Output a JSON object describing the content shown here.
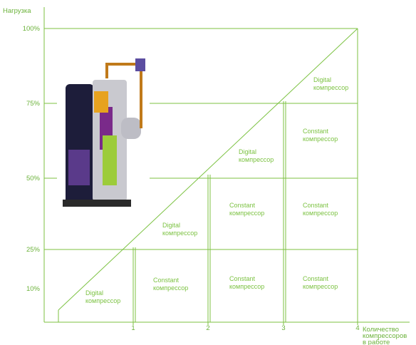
{
  "y_axis": {
    "title": "Нагрузка",
    "ticks": [
      "100%",
      "75%",
      "50%",
      "25%",
      "10%"
    ]
  },
  "x_axis": {
    "title": [
      "Количество",
      "компрессоров",
      "в работе"
    ],
    "ticks": [
      "1",
      "2",
      "3",
      "4"
    ]
  },
  "cells": [
    {
      "kind": "Digital",
      "label": "компрессор"
    },
    {
      "kind": "Constant",
      "label": "компрессор"
    },
    {
      "kind": "Constant",
      "label": "компрессор"
    },
    {
      "kind": "Constant",
      "label": "компрессор"
    },
    {
      "kind": "Digital",
      "label": "компрессор"
    },
    {
      "kind": "Constant",
      "label": "компрессор"
    },
    {
      "kind": "Constant",
      "label": "компрессор"
    },
    {
      "kind": "Digital",
      "label": "компрессор"
    },
    {
      "kind": "Constant",
      "label": "компрессор"
    },
    {
      "kind": "Digital",
      "label": "компрессор"
    }
  ]
}
